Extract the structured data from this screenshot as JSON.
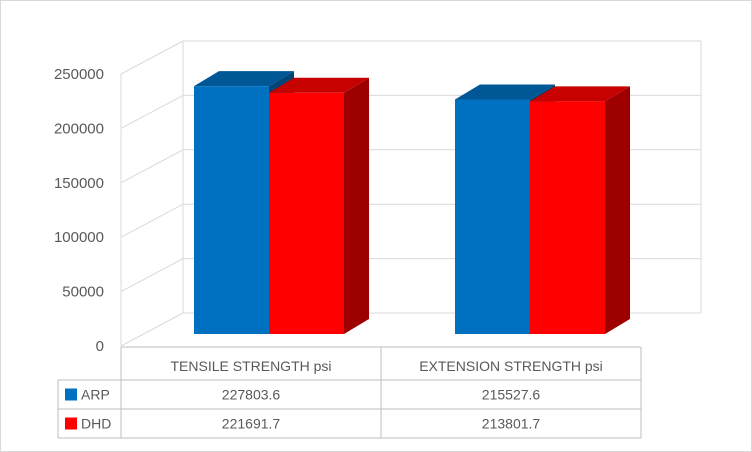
{
  "chart_data": {
    "type": "bar",
    "categories": [
      "TENSILE STRENGTH psi",
      "EXTENSION STRENGTH psi"
    ],
    "series": [
      {
        "name": "ARP",
        "values": [
          227803.6,
          215527.6
        ],
        "color": "#0070C0"
      },
      {
        "name": "DHD",
        "values": [
          221691.7,
          213801.7
        ],
        "color": "#FF0000"
      }
    ],
    "value_labels": [
      [
        "227803.6",
        "215527.6"
      ],
      [
        "221691.7",
        "213801.7"
      ]
    ],
    "ylim": [
      0,
      250000
    ],
    "yticks": [
      "0",
      "50000",
      "100000",
      "150000",
      "200000",
      "250000"
    ],
    "grid": true,
    "style": "3d-clustered-column",
    "data_table": true,
    "legend_placement": "data-table"
  }
}
